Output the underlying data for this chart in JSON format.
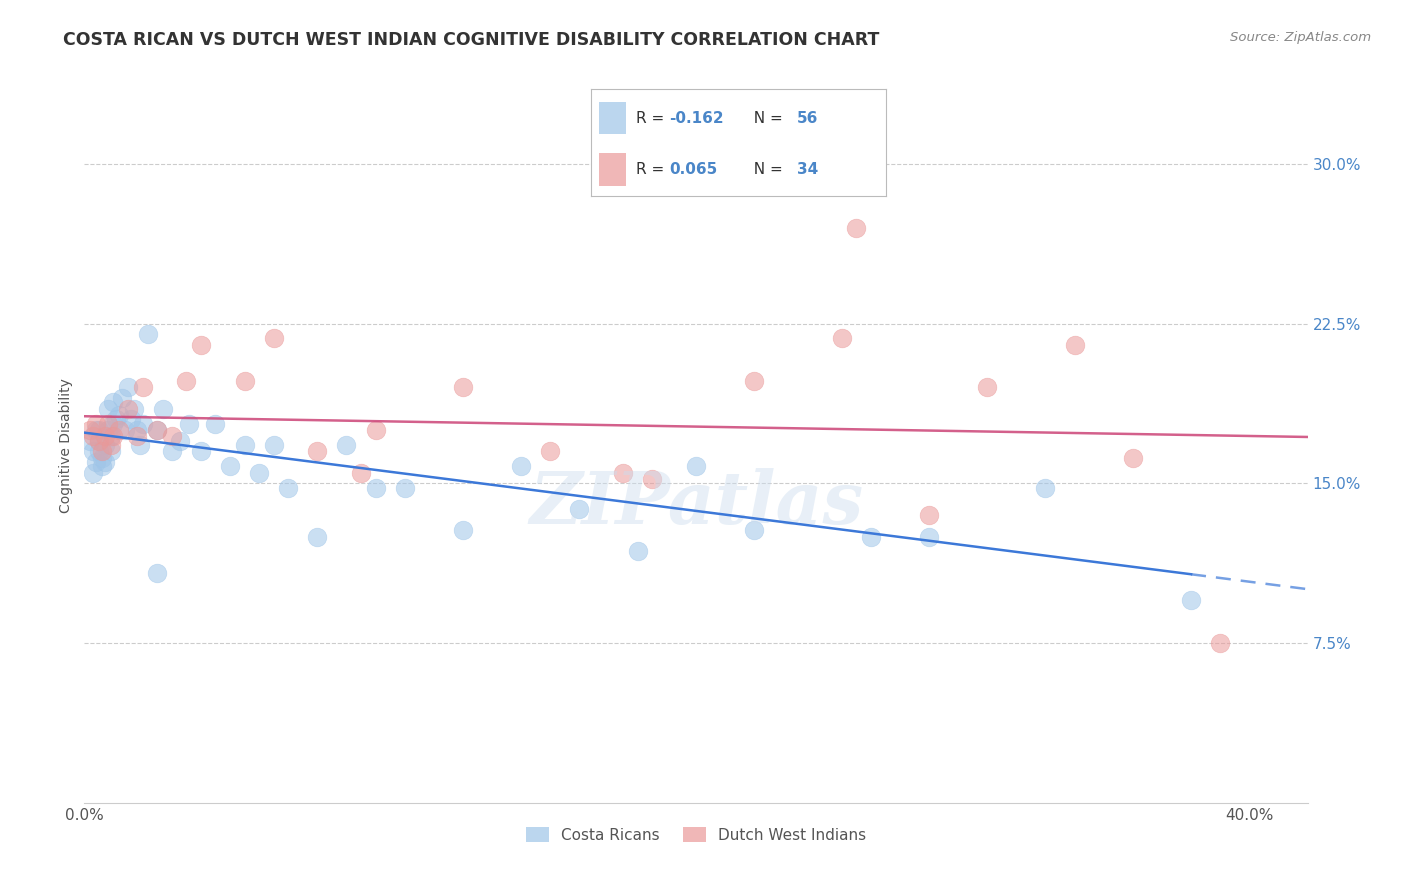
{
  "title": "COSTA RICAN VS DUTCH WEST INDIAN COGNITIVE DISABILITY CORRELATION CHART",
  "source": "Source: ZipAtlas.com",
  "ylabel": "Cognitive Disability",
  "ytick_labels": [
    "7.5%",
    "15.0%",
    "22.5%",
    "30.0%"
  ],
  "ytick_values": [
    0.075,
    0.15,
    0.225,
    0.3
  ],
  "xtick_labels": [
    "0.0%",
    "",
    "",
    "",
    "40.0%"
  ],
  "xtick_values": [
    0.0,
    0.1,
    0.2,
    0.3,
    0.4
  ],
  "xlim": [
    0.0,
    0.42
  ],
  "ylim": [
    0.0,
    0.335
  ],
  "legend_blue_r": "R = -0.162",
  "legend_blue_n": "N = 56",
  "legend_pink_r": "R = 0.065",
  "legend_pink_n": "N = 34",
  "legend_label_blue": "Costa Ricans",
  "legend_label_pink": "Dutch West Indians",
  "blue_color": "#9fc5e8",
  "pink_color": "#ea9999",
  "trendline_blue_color": "#3c78d8",
  "trendline_pink_color": "#cc4477",
  "watermark": "ZIPatlas",
  "blue_x": [
    0.002,
    0.003,
    0.003,
    0.004,
    0.004,
    0.005,
    0.005,
    0.005,
    0.006,
    0.006,
    0.007,
    0.007,
    0.008,
    0.008,
    0.009,
    0.009,
    0.01,
    0.01,
    0.011,
    0.012,
    0.013,
    0.014,
    0.015,
    0.016,
    0.017,
    0.018,
    0.019,
    0.02,
    0.022,
    0.025,
    0.027,
    0.03,
    0.033,
    0.036,
    0.04,
    0.045,
    0.05,
    0.055,
    0.06,
    0.065,
    0.07,
    0.08,
    0.09,
    0.1,
    0.11,
    0.13,
    0.15,
    0.17,
    0.19,
    0.21,
    0.23,
    0.27,
    0.29,
    0.33,
    0.38,
    0.025
  ],
  "blue_y": [
    0.17,
    0.165,
    0.155,
    0.175,
    0.16,
    0.165,
    0.17,
    0.175,
    0.162,
    0.158,
    0.168,
    0.16,
    0.175,
    0.185,
    0.172,
    0.165,
    0.178,
    0.188,
    0.18,
    0.182,
    0.19,
    0.175,
    0.195,
    0.18,
    0.185,
    0.175,
    0.168,
    0.178,
    0.22,
    0.175,
    0.185,
    0.165,
    0.17,
    0.178,
    0.165,
    0.178,
    0.158,
    0.168,
    0.155,
    0.168,
    0.148,
    0.125,
    0.168,
    0.148,
    0.148,
    0.128,
    0.158,
    0.138,
    0.118,
    0.158,
    0.128,
    0.125,
    0.125,
    0.148,
    0.095,
    0.108
  ],
  "pink_x": [
    0.002,
    0.003,
    0.004,
    0.005,
    0.006,
    0.007,
    0.008,
    0.009,
    0.01,
    0.012,
    0.015,
    0.018,
    0.02,
    0.025,
    0.03,
    0.035,
    0.04,
    0.055,
    0.065,
    0.08,
    0.095,
    0.1,
    0.13,
    0.16,
    0.185,
    0.195,
    0.23,
    0.26,
    0.29,
    0.31,
    0.34,
    0.36,
    0.39,
    0.265
  ],
  "pink_y": [
    0.175,
    0.172,
    0.178,
    0.17,
    0.165,
    0.172,
    0.178,
    0.168,
    0.172,
    0.175,
    0.185,
    0.172,
    0.195,
    0.175,
    0.172,
    0.198,
    0.215,
    0.198,
    0.218,
    0.165,
    0.155,
    0.175,
    0.195,
    0.165,
    0.155,
    0.152,
    0.198,
    0.218,
    0.135,
    0.195,
    0.215,
    0.162,
    0.075,
    0.27
  ]
}
